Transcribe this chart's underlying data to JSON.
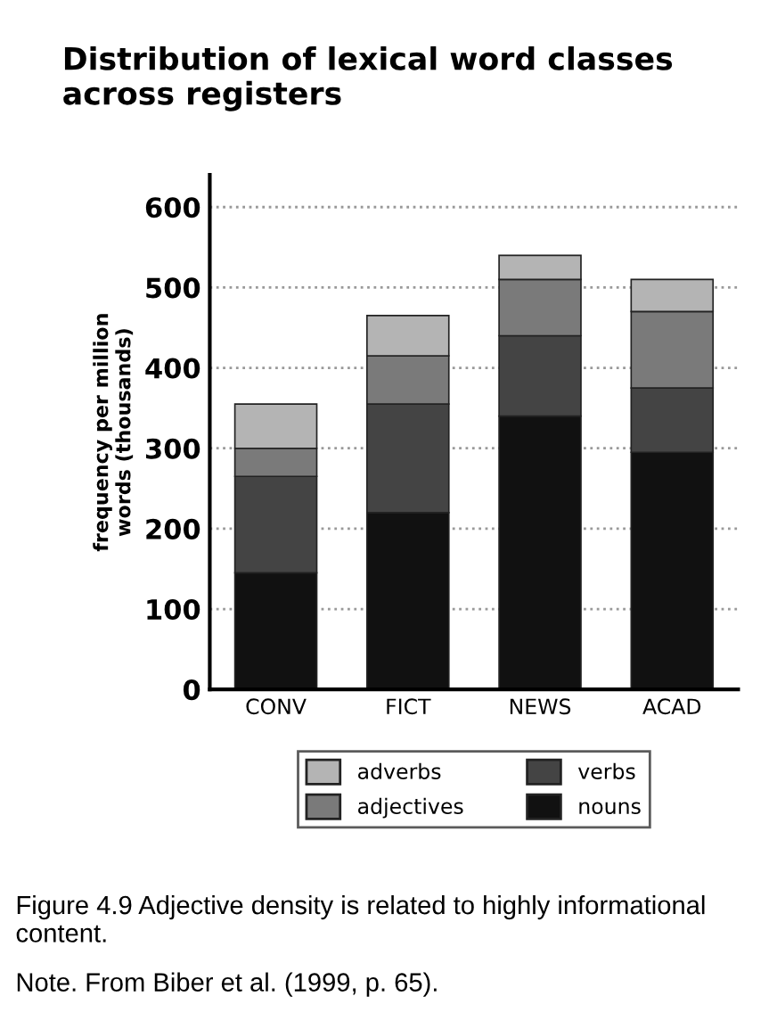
{
  "chart_data": {
    "type": "bar",
    "title": "Distribution of lexical word classes across registers",
    "ylabel": "frequency per million\nwords (thousands)",
    "categories": [
      "CONV",
      "FICT",
      "NEWS",
      "ACAD"
    ],
    "stacked": true,
    "series": [
      {
        "name": "nouns",
        "color": "#111111",
        "values": [
          145,
          220,
          340,
          295
        ]
      },
      {
        "name": "verbs",
        "color": "#444444",
        "values": [
          120,
          135,
          100,
          80
        ]
      },
      {
        "name": "adjectives",
        "color": "#7a7a7a",
        "values": [
          35,
          60,
          70,
          95
        ]
      },
      {
        "name": "adverbs",
        "color": "#b4b4b4",
        "values": [
          55,
          50,
          30,
          40
        ]
      }
    ],
    "ylim": [
      0,
      640
    ],
    "yticks": [
      0,
      100,
      200,
      300,
      400,
      500,
      600
    ],
    "grid": "y",
    "legend": "bottom",
    "annotations": [
      "Figure 4.9 Adjective density is related to highly informational content.",
      "Note. From Biber et al. (1999, p. 65)."
    ]
  }
}
